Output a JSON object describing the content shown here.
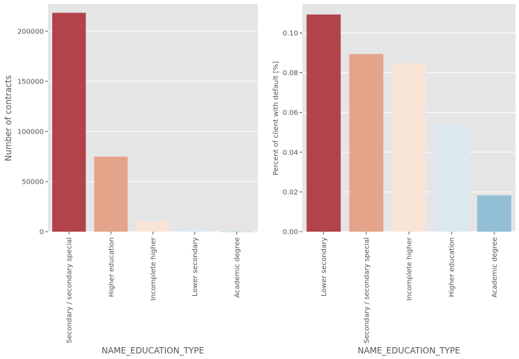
{
  "chart_data": [
    {
      "type": "bar",
      "xlabel": "NAME_EDUCATION_TYPE",
      "ylabel": "Number of contracts",
      "ylim": [
        0,
        227000
      ],
      "yticks": [
        0,
        50000,
        100000,
        150000,
        200000
      ],
      "grid": true,
      "categories": [
        "Secondary / secondary special",
        "Higher education",
        "Incomplete higher",
        "Lower secondary",
        "Academic degree"
      ],
      "values": [
        218391,
        74863,
        10277,
        3816,
        164
      ],
      "colors": [
        "#b2434a",
        "#e4a48a",
        "#f9e4d8",
        "#dde9f0",
        "#92bfd6"
      ]
    },
    {
      "type": "bar",
      "xlabel": "NAME_EDUCATION_TYPE",
      "ylabel": "Percent of client with default [%]",
      "ylim": [
        0,
        0.1145
      ],
      "yticks": [
        0.0,
        0.02,
        0.04,
        0.06,
        0.08,
        0.1
      ],
      "grid": true,
      "categories": [
        "Lower secondary",
        "Secondary / secondary special",
        "Incomplete higher",
        "Higher education",
        "Academic degree"
      ],
      "values": [
        0.1093,
        0.0894,
        0.0848,
        0.0536,
        0.0183
      ],
      "colors": [
        "#b2434a",
        "#e4a48a",
        "#f9e4d8",
        "#dde9f0",
        "#92bfd6"
      ]
    }
  ]
}
